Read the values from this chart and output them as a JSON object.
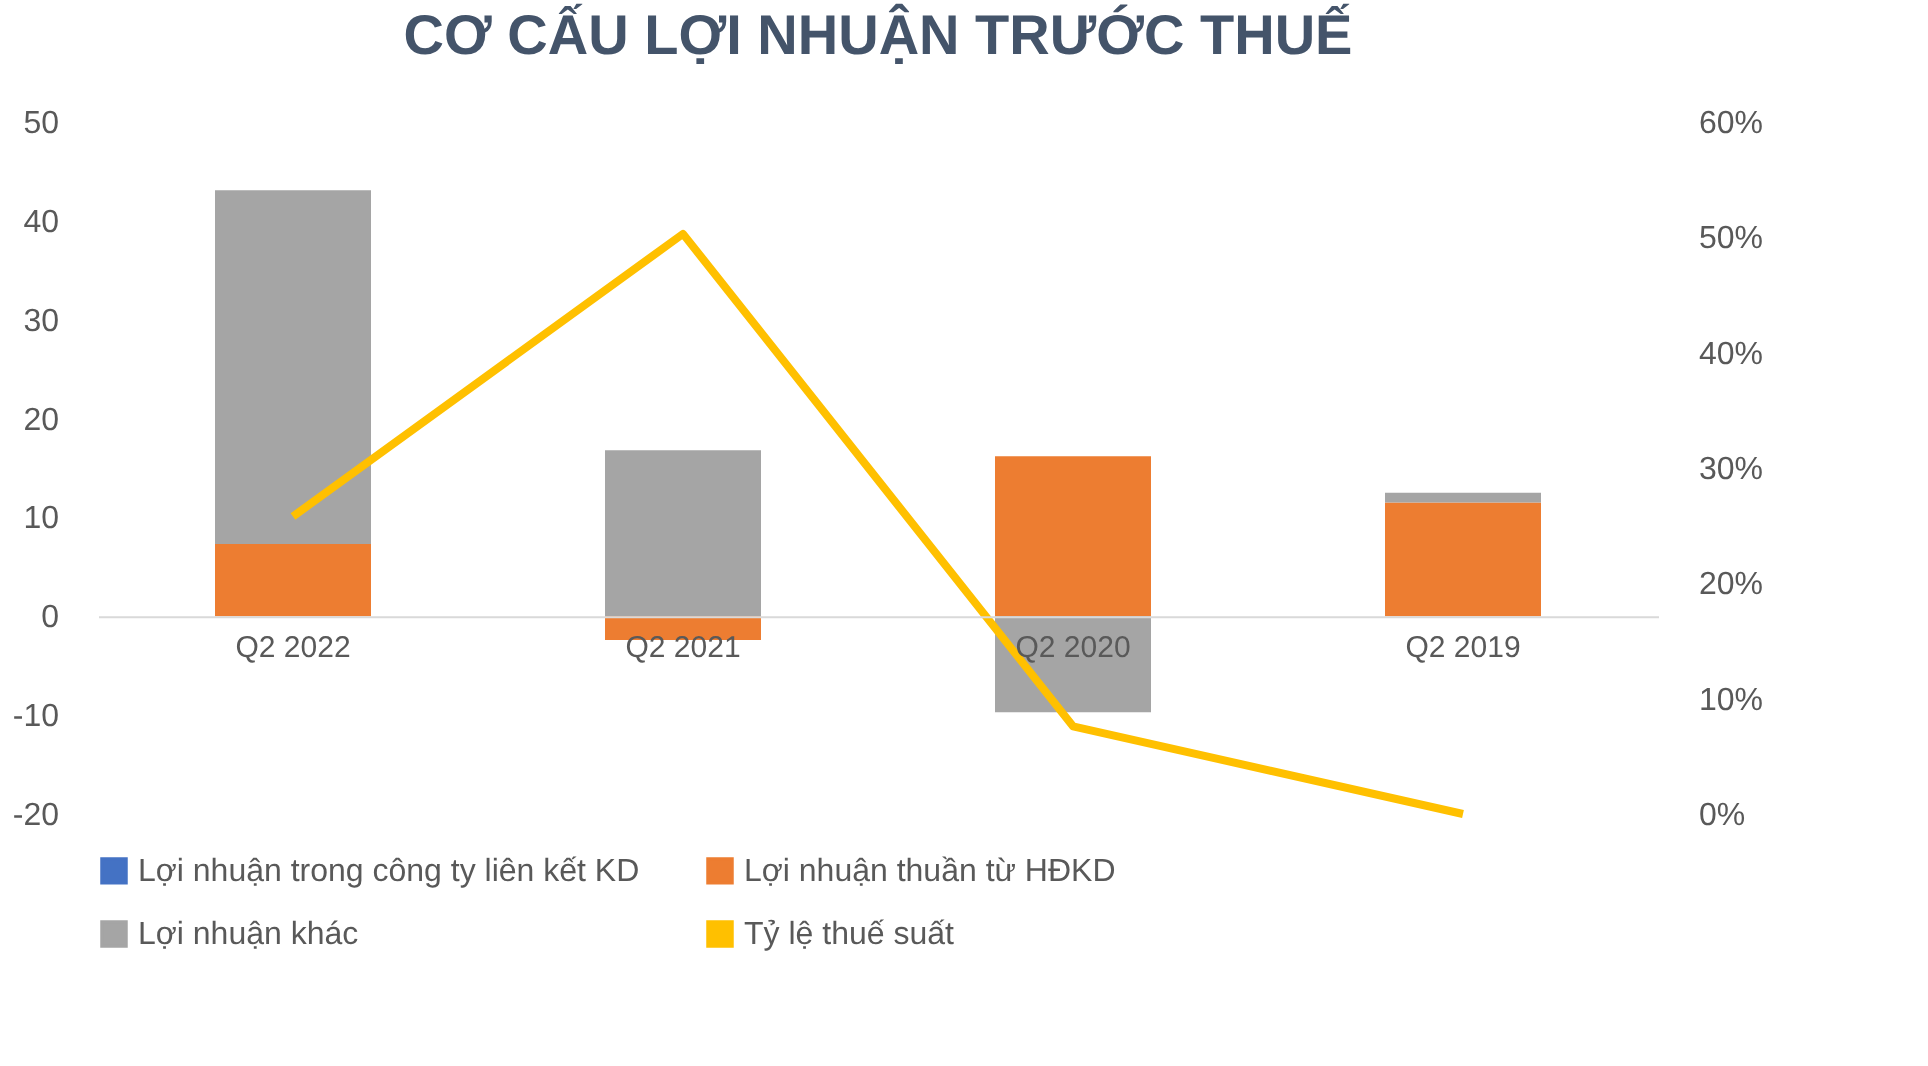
{
  "chart_data": {
    "type": "bar",
    "title": "CƠ CẤU LỢI NHUẬN TRƯỚC THUẾ",
    "stacked": true,
    "categories": [
      "Q2 2022",
      "Q2 2021",
      "Q2 2020",
      "Q2 2019"
    ],
    "series": [
      {
        "name": "Lợi nhuận trong công ty liên kết KD",
        "color": "#4472c4",
        "values": [
          null,
          null,
          null,
          null
        ]
      },
      {
        "name": "Lợi nhuận thuần từ HĐKD",
        "color": "#ed7d31",
        "values": [
          7.3,
          -2.4,
          16.2,
          11.5
        ]
      },
      {
        "name": "Lợi nhuận khác",
        "color": "#a5a5a5",
        "values": [
          35.8,
          16.8,
          -9.7,
          1.0
        ]
      },
      {
        "name": "Tỷ lệ thuế suất",
        "color": "#ffc000",
        "type": "line",
        "axis": "y2",
        "values": [
          25.8,
          50.3,
          7.6,
          0
        ]
      }
    ],
    "ylim": [
      -20,
      50
    ],
    "yticks": [
      -20,
      -10,
      0,
      10,
      20,
      30,
      40,
      50
    ],
    "y2lim": [
      0,
      60
    ],
    "y2ticks": [
      {
        "value": 0,
        "label": "0%"
      },
      {
        "value": 10,
        "label": "10%"
      },
      {
        "value": 20,
        "label": "20%"
      },
      {
        "value": 30,
        "label": "30%"
      },
      {
        "value": 40,
        "label": "40%"
      },
      {
        "value": 50,
        "label": "50%"
      },
      {
        "value": 60,
        "label": "60%"
      }
    ],
    "grid": false,
    "legend": "bottom",
    "line_style": "solid",
    "marker": "none"
  }
}
